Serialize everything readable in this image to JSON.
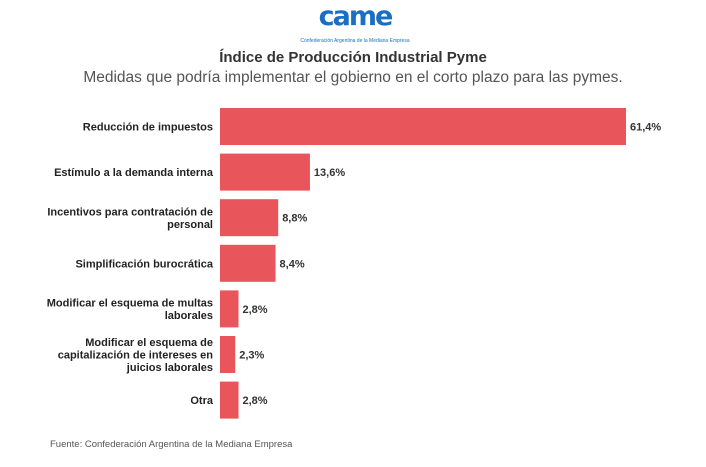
{
  "logo": {
    "text": "came",
    "subtext": "Confederación Argentina de la Mediana Empresa"
  },
  "chart_data": {
    "type": "bar",
    "orientation": "horizontal",
    "title": "Índice de Producción Industrial Pyme",
    "subtitle": "Medidas que podría implementar el gobierno en el corto plazo para las pymes.",
    "categories": [
      "Reducción de impuestos",
      "Estímulo a la demanda interna",
      "Incentivos para contratación de personal",
      "Simplificación burocrática",
      "Modificar el esquema de multas laborales",
      "Modificar el esquema de capitalización de intereses en juicios laborales",
      "Otra"
    ],
    "category_lines": [
      [
        "Reducción de impuestos"
      ],
      [
        "Estímulo a la demanda interna"
      ],
      [
        "Incentivos para contratación de",
        "personal"
      ],
      [
        "Simplificación burocrática"
      ],
      [
        "Modificar el esquema de multas",
        "laborales"
      ],
      [
        "Modificar el esquema de",
        "capitalización de intereses en",
        "juicios laborales"
      ],
      [
        "Otra"
      ]
    ],
    "values": [
      61.4,
      13.6,
      8.8,
      8.4,
      2.8,
      2.3,
      2.8
    ],
    "value_labels": [
      "61,4%",
      "13,6%",
      "8,8%",
      "8,4%",
      "2,8%",
      "2,3%",
      "2,8%"
    ],
    "xlim": [
      0,
      61.4
    ],
    "grid": false,
    "bar_color": "#e8555a"
  },
  "source": "Fuente: Confederación Argentina de la Mediana Empresa"
}
